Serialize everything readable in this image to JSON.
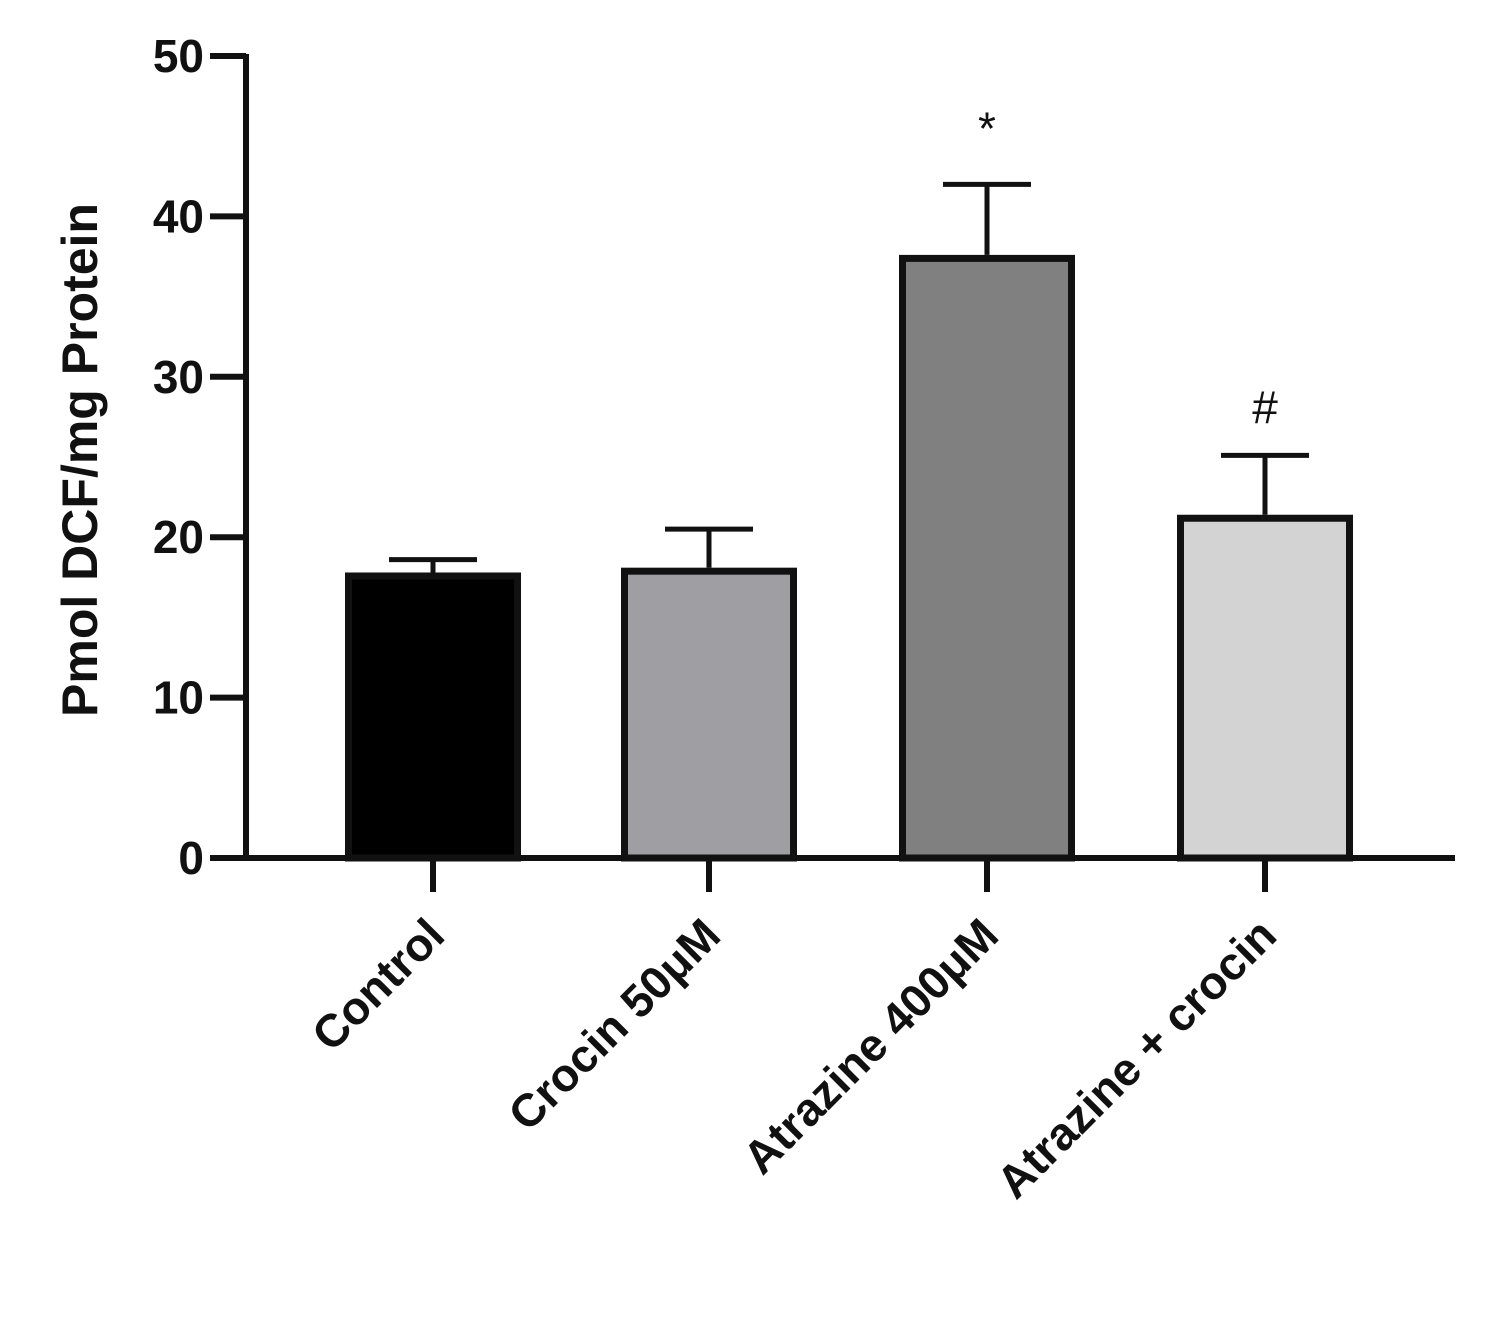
{
  "chart_data": {
    "type": "bar",
    "title": "",
    "xlabel": "",
    "ylabel": "Pmol DCF/mg Protein",
    "ylim": [
      0,
      50
    ],
    "yticks": [
      0,
      10,
      20,
      30,
      40,
      50
    ],
    "categories": [
      "Control",
      "Crocin 50μM",
      "Atrazine 400μM",
      "Atrazine + crocin"
    ],
    "values": [
      17.8,
      18.1,
      37.6,
      21.4
    ],
    "errors": [
      0.8,
      2.4,
      4.4,
      3.7
    ],
    "annotations": [
      "",
      "",
      "*",
      "#"
    ],
    "colors": [
      "#000000",
      "#9e9ea3",
      "#808080",
      "#d3d3d3"
    ],
    "edge_color": "#111111",
    "grid": false,
    "legend": "none"
  }
}
